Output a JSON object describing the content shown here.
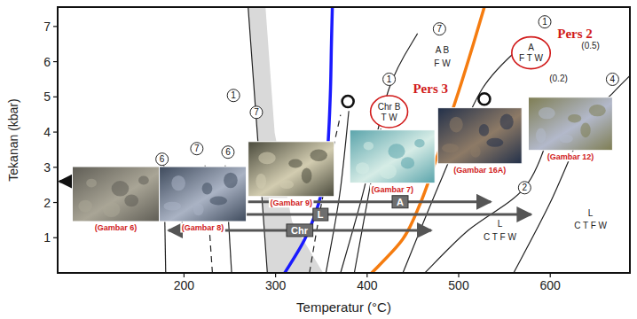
{
  "chart_data": {
    "type": "line",
    "xlabel": "Temperatur (°C)",
    "ylabel": "Tekanan (kbar)",
    "xlim": [
      62,
      687
    ],
    "ylim": [
      0,
      7.55
    ],
    "xticks": [
      200,
      300,
      400,
      500,
      600
    ],
    "yticks": [
      1,
      2,
      3,
      4,
      5,
      6,
      7
    ],
    "series": [
      {
        "type": "band",
        "color": "#d9d9d9",
        "x": [
          291,
          287,
          280,
          270
        ],
        "x_right": [
          352,
          318,
          299,
          289
        ],
        "values": [
          0,
          1.46,
          3.98,
          7.55
        ]
      },
      {
        "color": "#1a1aff",
        "line_style": "solid",
        "x": [
          310,
          332,
          347,
          355,
          358,
          360,
          361,
          362
        ],
        "values": [
          0,
          0.96,
          1.97,
          2.97,
          3.98,
          5.24,
          6.5,
          7.55
        ]
      },
      {
        "color": "#f57c10",
        "line_style": "solid",
        "x": [
          405,
          439,
          458,
          472,
          485,
          501,
          516,
          528
        ],
        "values": [
          0,
          0.96,
          1.97,
          2.97,
          3.98,
          5.24,
          6.5,
          7.55
        ]
      },
      {
        "color": "#222222",
        "line_style": "solid",
        "x": [
          180,
          178
        ],
        "values": [
          0,
          3.05
        ]
      },
      {
        "color": "#222222",
        "line_style": "dashed",
        "x": [
          231,
          223
        ],
        "values": [
          0,
          3.05
        ]
      },
      {
        "color": "#222222",
        "line_style": "solid",
        "x": [
          252,
          245
        ],
        "values": [
          0,
          3.05
        ]
      },
      {
        "color": "#222222",
        "line_style": "dashed",
        "x": [
          337,
          352,
          371
        ],
        "values": [
          0,
          2.22,
          4.49
        ]
      },
      {
        "color": "#222222",
        "line_style": "solid",
        "x": [
          355,
          370,
          380
        ],
        "values": [
          0,
          2.22,
          4.6
        ]
      },
      {
        "color": "#222222",
        "line_style": "solid",
        "x": [
          371,
          395,
          424,
          455
        ],
        "values": [
          0,
          2.22,
          5.24,
          6.8
        ]
      },
      {
        "color": "#222222",
        "line_style": "solid",
        "x": [
          386,
          400,
          415
        ],
        "values": [
          0,
          2.0,
          4.1
        ]
      },
      {
        "color": "#222222",
        "line_style": "solid",
        "x": [
          439,
          482,
          526,
          575
        ],
        "values": [
          0,
          2.72,
          5.24,
          6.6
        ]
      },
      {
        "color": "#222222",
        "line_style": "solid",
        "x": [
          463,
          510,
          572,
          600
        ],
        "values": [
          0,
          1.2,
          2.42,
          4.0
        ]
      },
      {
        "color": "#222222",
        "line_style": "solid",
        "x": [
          560,
          600,
          640,
          668,
          687
        ],
        "values": [
          0,
          2.0,
          4.3,
          5.1,
          5.6
        ]
      }
    ],
    "ranges": [
      {
        "label": "A",
        "from": 270,
        "to": 535,
        "y": 2.02,
        "label_x": 436,
        "color": "#555555",
        "marker": "end"
      },
      {
        "label": "L",
        "from": 183,
        "to": 579,
        "y": 1.66,
        "label_x": 349,
        "color": "#555555",
        "marker": "both"
      },
      {
        "label": "Chr",
        "from": 183,
        "to": 470,
        "y": 1.21,
        "label_x": 326,
        "color": "#555555",
        "marker": "both"
      },
      {
        "from": 173,
        "to": 64,
        "y": 2.6,
        "color": "#111111",
        "marker": "end"
      }
    ],
    "circles": [
      {
        "label": "6",
        "x": 176,
        "y": 3.23
      },
      {
        "label": "7",
        "x": 214,
        "y": 3.53
      },
      {
        "label": "6",
        "x": 248,
        "y": 3.43
      },
      {
        "label": "1",
        "x": 254,
        "y": 5.04
      },
      {
        "label": "7",
        "x": 279,
        "y": 4.56
      },
      {
        "label": "1",
        "x": 424,
        "y": 5.5
      },
      {
        "label": "7",
        "x": 479,
        "y": 6.93
      },
      {
        "label": "1",
        "x": 594,
        "y": 7.13
      },
      {
        "label": "2",
        "x": 572,
        "y": 2.42
      },
      {
        "label": "4",
        "x": 668,
        "y": 5.5
      }
    ],
    "markers": [
      {
        "x": 379,
        "y": 4.87
      },
      {
        "x": 528,
        "y": 4.94
      }
    ],
    "texts": [
      {
        "text": "A B",
        "x": 482,
        "y": 6.33
      },
      {
        "text": "F W",
        "x": 482,
        "y": 5.95
      },
      {
        "text": "(0.5)",
        "x": 644,
        "y": 6.45
      },
      {
        "text": "(0.2)",
        "x": 609,
        "y": 5.52
      },
      {
        "text": "L",
        "x": 545,
        "y": 1.39
      },
      {
        "text": "C T F W",
        "x": 545,
        "y": 1.01
      },
      {
        "text": "L",
        "x": 644,
        "y": 1.71
      },
      {
        "text": "C T F W",
        "x": 644,
        "y": 1.34
      }
    ],
    "highlights": [
      {
        "lines": [
          "Chr B",
          "T W"
        ],
        "x": 424,
        "y": 4.58,
        "label": "Pers 3",
        "label_x": 450,
        "label_y": 5.24
      },
      {
        "lines": [
          "A",
          "F T W"
        ],
        "x": 579,
        "y": 6.25,
        "label": "Pers 2",
        "label_x": 627,
        "label_y": 6.8
      }
    ],
    "photos": [
      {
        "label": "(Gambar 6)",
        "x": [
          78,
          173
        ],
        "y": [
          1.46,
          3.02
        ]
      },
      {
        "label": "(Gambar 8)",
        "x": [
          173,
          268
        ],
        "y": [
          1.46,
          3.02
        ]
      },
      {
        "label": "(Gambar 9)",
        "x": [
          270,
          364
        ],
        "y": [
          2.17,
          3.73
        ]
      },
      {
        "label": "(Gambar 7)",
        "x": [
          381,
          474
        ],
        "y": [
          2.55,
          4.06
        ]
      },
      {
        "label": "(Gambar 16A)",
        "x": [
          477,
          569
        ],
        "y": [
          3.1,
          4.69
        ]
      },
      {
        "label": "(Gambar 12)",
        "x": [
          576,
          668
        ],
        "y": [
          3.48,
          4.99
        ]
      }
    ]
  }
}
